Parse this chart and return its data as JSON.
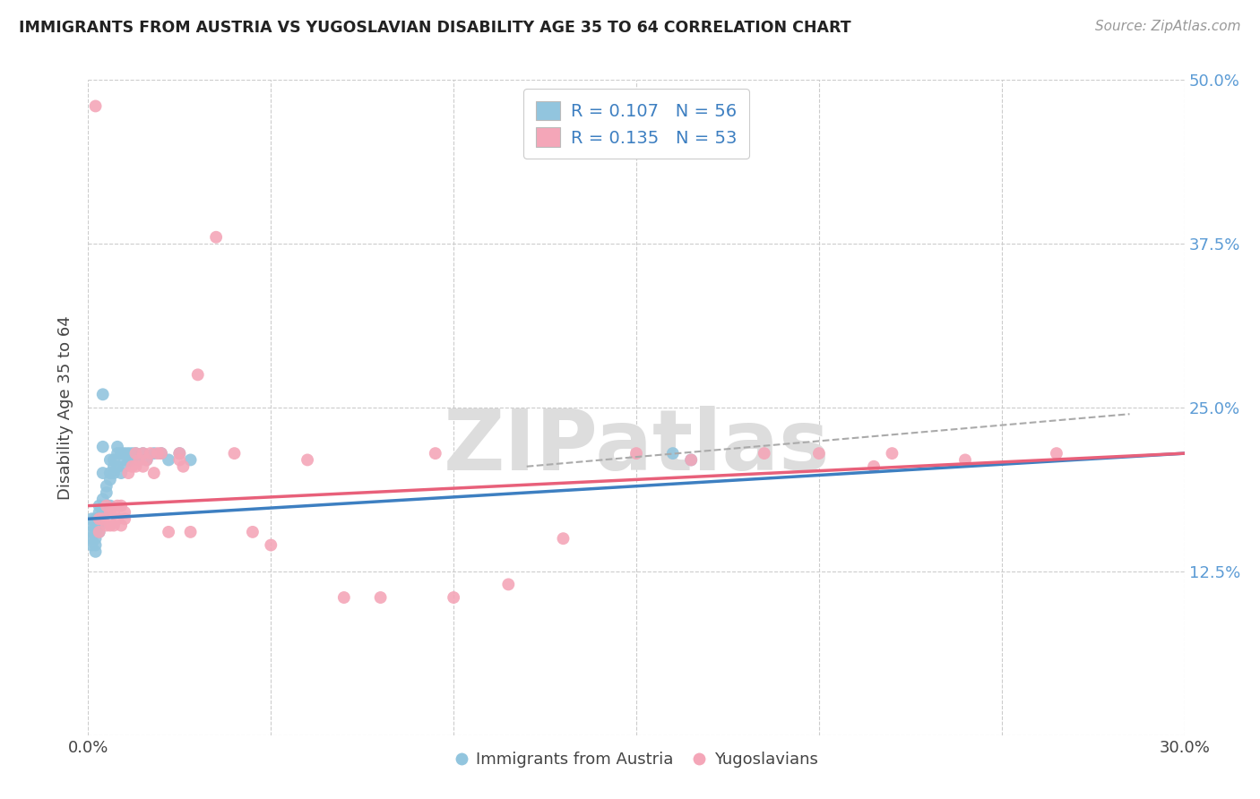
{
  "title": "IMMIGRANTS FROM AUSTRIA VS YUGOSLAVIAN DISABILITY AGE 35 TO 64 CORRELATION CHART",
  "source": "Source: ZipAtlas.com",
  "ylabel": "Disability Age 35 to 64",
  "xlim": [
    0.0,
    0.3
  ],
  "ylim": [
    0.0,
    0.5
  ],
  "yticks": [
    0.0,
    0.125,
    0.25,
    0.375,
    0.5
  ],
  "yticklabels": [
    "",
    "12.5%",
    "25.0%",
    "37.5%",
    "50.0%"
  ],
  "austria_R": 0.107,
  "austria_N": 56,
  "yugo_R": 0.135,
  "yugo_N": 53,
  "austria_color": "#92c5de",
  "yugo_color": "#f4a6b8",
  "austria_line_color": "#3d7fc1",
  "yugo_line_color": "#e8607a",
  "grid_color": "#cccccc",
  "background_color": "#ffffff",
  "legend_label_austria": "Immigrants from Austria",
  "legend_label_yugo": "Yugoslavians",
  "austria_x": [
    0.001,
    0.001,
    0.001,
    0.001,
    0.001,
    0.002,
    0.002,
    0.002,
    0.002,
    0.002,
    0.002,
    0.002,
    0.003,
    0.003,
    0.003,
    0.003,
    0.003,
    0.004,
    0.004,
    0.004,
    0.004,
    0.004,
    0.005,
    0.005,
    0.005,
    0.005,
    0.006,
    0.006,
    0.006,
    0.006,
    0.007,
    0.007,
    0.007,
    0.008,
    0.008,
    0.008,
    0.009,
    0.009,
    0.01,
    0.01,
    0.01,
    0.011,
    0.011,
    0.012,
    0.012,
    0.013,
    0.014,
    0.015,
    0.016,
    0.018,
    0.02,
    0.022,
    0.025,
    0.028,
    0.16,
    0.165
  ],
  "austria_y": [
    0.155,
    0.16,
    0.165,
    0.15,
    0.145,
    0.155,
    0.16,
    0.145,
    0.165,
    0.14,
    0.15,
    0.155,
    0.16,
    0.165,
    0.17,
    0.175,
    0.155,
    0.17,
    0.18,
    0.2,
    0.26,
    0.22,
    0.185,
    0.19,
    0.17,
    0.175,
    0.195,
    0.2,
    0.21,
    0.175,
    0.2,
    0.205,
    0.21,
    0.205,
    0.215,
    0.22,
    0.2,
    0.215,
    0.205,
    0.21,
    0.215,
    0.21,
    0.215,
    0.21,
    0.215,
    0.215,
    0.21,
    0.215,
    0.21,
    0.215,
    0.215,
    0.21,
    0.215,
    0.21,
    0.215,
    0.21
  ],
  "yugo_x": [
    0.002,
    0.003,
    0.003,
    0.004,
    0.005,
    0.005,
    0.006,
    0.006,
    0.007,
    0.007,
    0.008,
    0.008,
    0.009,
    0.009,
    0.01,
    0.01,
    0.011,
    0.012,
    0.013,
    0.013,
    0.014,
    0.015,
    0.015,
    0.016,
    0.017,
    0.018,
    0.019,
    0.02,
    0.022,
    0.025,
    0.025,
    0.026,
    0.028,
    0.03,
    0.035,
    0.04,
    0.045,
    0.05,
    0.06,
    0.07,
    0.08,
    0.095,
    0.1,
    0.115,
    0.13,
    0.15,
    0.165,
    0.185,
    0.2,
    0.215,
    0.22,
    0.24,
    0.265
  ],
  "yugo_y": [
    0.48,
    0.155,
    0.165,
    0.165,
    0.16,
    0.175,
    0.16,
    0.17,
    0.16,
    0.17,
    0.175,
    0.165,
    0.16,
    0.175,
    0.165,
    0.17,
    0.2,
    0.205,
    0.205,
    0.215,
    0.21,
    0.205,
    0.215,
    0.21,
    0.215,
    0.2,
    0.215,
    0.215,
    0.155,
    0.21,
    0.215,
    0.205,
    0.155,
    0.275,
    0.38,
    0.215,
    0.155,
    0.145,
    0.21,
    0.105,
    0.105,
    0.215,
    0.105,
    0.115,
    0.15,
    0.215,
    0.21,
    0.215,
    0.215,
    0.205,
    0.215,
    0.21,
    0.215
  ]
}
